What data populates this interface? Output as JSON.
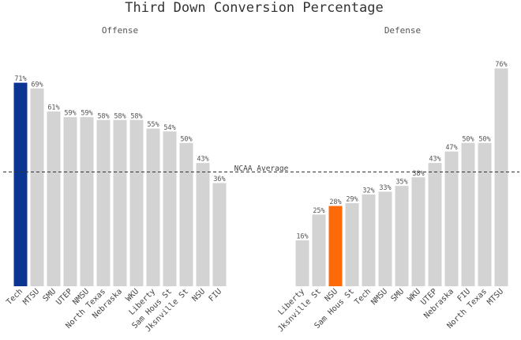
{
  "chart_data": {
    "type": "bar",
    "title": "Third Down Conversion Percentage",
    "reference_line": {
      "label": "NCAA Average",
      "value": 40
    },
    "colors": {
      "default": "#d3d3d3",
      "highlight_offense": "#0b3592",
      "highlight_defense": "#ff6a08"
    },
    "ylim": [
      0,
      80
    ],
    "panels": [
      {
        "name": "Offense",
        "highlight": "Tech",
        "categories": [
          "Tech",
          "MTSU",
          "SMU",
          "UTEP",
          "NMSU",
          "North Texas",
          "Nebraska",
          "WKU",
          "Liberty",
          "Sam Hous St",
          "Jksnville St",
          "NSU",
          "FIU"
        ],
        "values": [
          71,
          69,
          61,
          59,
          59,
          58,
          58,
          58,
          55,
          54,
          50,
          43,
          36
        ],
        "labels": [
          "71%",
          "69%",
          "61%",
          "59%",
          "59%",
          "58%",
          "58%",
          "58%",
          "55%",
          "54%",
          "50%",
          "43%",
          "36%"
        ]
      },
      {
        "name": "Defense",
        "highlight": "NSU",
        "categories": [
          "Liberty",
          "Jksnville St",
          "NSU",
          "Sam Hous St",
          "Tech",
          "NMSU",
          "SMU",
          "WKU",
          "UTEP",
          "Nebraska",
          "FIU",
          "North Texas",
          "MTSU"
        ],
        "values": [
          16,
          25,
          28,
          29,
          32,
          33,
          35,
          38,
          43,
          47,
          50,
          50,
          76
        ],
        "labels": [
          "16%",
          "25%",
          "28%",
          "29%",
          "32%",
          "33%",
          "35%",
          "38%",
          "43%",
          "47%",
          "50%",
          "50%",
          "76%"
        ]
      }
    ]
  }
}
